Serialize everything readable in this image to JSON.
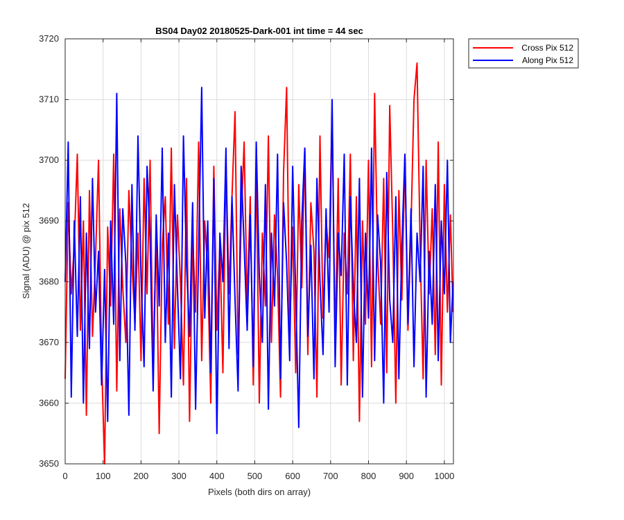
{
  "chart_data": {
    "type": "line",
    "title": "BS04 Day02 20180525-Dark-001 int time = 44 sec",
    "xlabel": "Pixels (both dirs on array)",
    "ylabel": "Signal (ADU) @ pix 512",
    "xlim": [
      0,
      1024
    ],
    "ylim": [
      3650,
      3720
    ],
    "xticks": [
      0,
      100,
      200,
      300,
      400,
      500,
      600,
      700,
      800,
      900,
      1000
    ],
    "yticks": [
      3650,
      3660,
      3670,
      3680,
      3690,
      3700,
      3710,
      3720
    ],
    "grid": true,
    "legend_position": "top-right outside",
    "series": [
      {
        "name": "Cross Pix 512",
        "color": "#ff0000",
        "x": [
          0,
          8,
          16,
          24,
          32,
          40,
          48,
          56,
          64,
          72,
          80,
          88,
          96,
          104,
          112,
          120,
          128,
          136,
          144,
          152,
          160,
          168,
          176,
          184,
          192,
          200,
          208,
          216,
          224,
          232,
          240,
          248,
          256,
          264,
          272,
          280,
          288,
          296,
          304,
          312,
          320,
          328,
          336,
          344,
          352,
          360,
          368,
          376,
          384,
          392,
          400,
          408,
          416,
          424,
          432,
          440,
          448,
          456,
          464,
          472,
          480,
          488,
          496,
          504,
          512,
          520,
          528,
          536,
          544,
          552,
          560,
          568,
          576,
          584,
          592,
          600,
          608,
          616,
          624,
          632,
          640,
          648,
          656,
          664,
          672,
          680,
          688,
          696,
          704,
          712,
          720,
          728,
          736,
          744,
          752,
          760,
          768,
          776,
          784,
          792,
          800,
          808,
          816,
          824,
          832,
          840,
          848,
          856,
          864,
          872,
          880,
          888,
          896,
          904,
          912,
          920,
          928,
          936,
          944,
          952,
          960,
          968,
          976,
          984,
          992,
          1000,
          1008,
          1016,
          1023
        ],
        "values": [
          3664,
          3693,
          3678,
          3686,
          3701,
          3672,
          3690,
          3658,
          3695,
          3671,
          3684,
          3700,
          3667,
          3650,
          3689,
          3676,
          3701,
          3662,
          3692,
          3679,
          3670,
          3695,
          3683,
          3673,
          3688,
          3667,
          3697,
          3678,
          3700,
          3665,
          3689,
          3655,
          3686,
          3694,
          3673,
          3702,
          3669,
          3691,
          3680,
          3663,
          3697,
          3657,
          3688,
          3675,
          3703,
          3667,
          3690,
          3682,
          3660,
          3699,
          3672,
          3686,
          3665,
          3700,
          3678,
          3694,
          3708,
          3668,
          3690,
          3703,
          3676,
          3694,
          3663,
          3700,
          3660,
          3688,
          3676,
          3704,
          3670,
          3691,
          3681,
          3661,
          3698,
          3712,
          3672,
          3689,
          3665,
          3696,
          3679,
          3702,
          3668,
          3693,
          3685,
          3661,
          3704,
          3674,
          3690,
          3684,
          3708,
          3670,
          3697,
          3663,
          3688,
          3678,
          3701,
          3667,
          3694,
          3657,
          3690,
          3673,
          3700,
          3666,
          3711,
          3684,
          3673,
          3697,
          3665,
          3709,
          3688,
          3660,
          3695,
          3677,
          3701,
          3672,
          3689,
          3710,
          3716,
          3686,
          3664,
          3700,
          3678,
          3692,
          3668,
          3703,
          3663,
          3696,
          3675,
          3691,
          3675
        ]
      },
      {
        "name": "Along Pix 512",
        "color": "#0000ff",
        "x": [
          0,
          8,
          16,
          24,
          32,
          40,
          48,
          56,
          64,
          72,
          80,
          88,
          96,
          104,
          112,
          120,
          128,
          136,
          144,
          152,
          160,
          168,
          176,
          184,
          192,
          200,
          208,
          216,
          224,
          232,
          240,
          248,
          256,
          264,
          272,
          280,
          288,
          296,
          304,
          312,
          320,
          328,
          336,
          344,
          352,
          360,
          368,
          376,
          384,
          392,
          400,
          408,
          416,
          424,
          432,
          440,
          448,
          456,
          464,
          472,
          480,
          488,
          496,
          504,
          512,
          520,
          528,
          536,
          544,
          552,
          560,
          568,
          576,
          584,
          592,
          600,
          608,
          616,
          624,
          632,
          640,
          648,
          656,
          664,
          672,
          680,
          688,
          696,
          704,
          712,
          720,
          728,
          736,
          744,
          752,
          760,
          768,
          776,
          784,
          792,
          800,
          808,
          816,
          824,
          832,
          840,
          848,
          856,
          864,
          872,
          880,
          888,
          896,
          904,
          912,
          920,
          928,
          936,
          944,
          952,
          960,
          968,
          976,
          984,
          992,
          1000,
          1008,
          1016,
          1023
        ],
        "values": [
          3680,
          3703,
          3661,
          3690,
          3671,
          3694,
          3660,
          3688,
          3669,
          3697,
          3675,
          3685,
          3663,
          3682,
          3657,
          3690,
          3673,
          3711,
          3667,
          3692,
          3683,
          3658,
          3696,
          3672,
          3704,
          3681,
          3666,
          3699,
          3687,
          3662,
          3691,
          3676,
          3702,
          3670,
          3688,
          3661,
          3696,
          3679,
          3664,
          3704,
          3683,
          3671,
          3693,
          3659,
          3685,
          3712,
          3674,
          3690,
          3665,
          3697,
          3655,
          3688,
          3680,
          3702,
          3669,
          3694,
          3677,
          3662,
          3699,
          3686,
          3672,
          3691,
          3666,
          3703,
          3681,
          3670,
          3696,
          3659,
          3688,
          3676,
          3701,
          3664,
          3693,
          3683,
          3667,
          3699,
          3678,
          3656,
          3690,
          3702,
          3671,
          3686,
          3664,
          3697,
          3680,
          3668,
          3692,
          3675,
          3710,
          3666,
          3688,
          3681,
          3701,
          3663,
          3694,
          3679,
          3670,
          3697,
          3661,
          3688,
          3674,
          3702,
          3667,
          3691,
          3683,
          3660,
          3698,
          3677,
          3670,
          3694,
          3664,
          3686,
          3701,
          3673,
          3692,
          3666,
          3688,
          3680,
          3699,
          3661,
          3685,
          3673,
          3696,
          3667,
          3690,
          3678,
          3700,
          3670,
          3680
        ]
      }
    ]
  }
}
